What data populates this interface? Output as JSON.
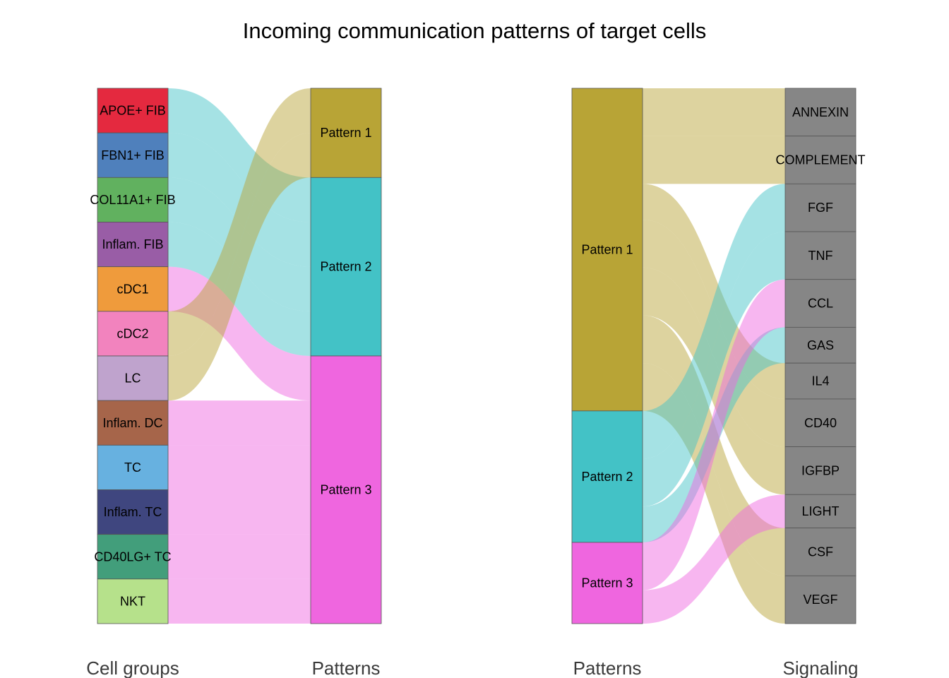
{
  "chart_data": {
    "type": "alluvial",
    "title": "Incoming communication patterns of target cells",
    "panels": [
      {
        "name": "cell-groups-to-patterns",
        "left_axis_label": "Cell groups",
        "right_axis_label": "Patterns",
        "left_nodes": [
          {
            "label": "APOE+ FIB",
            "color": "#E4293F",
            "value": 1
          },
          {
            "label": "FBN1+ FIB",
            "color": "#4F80BC",
            "value": 1
          },
          {
            "label": "COL11A1+ FIB",
            "color": "#61B15F",
            "value": 1
          },
          {
            "label": "Inflam. FIB",
            "color": "#995DA6",
            "value": 1
          },
          {
            "label": "cDC1",
            "color": "#EF9B3C",
            "value": 1
          },
          {
            "label": "cDC2",
            "color": "#F283BE",
            "value": 1
          },
          {
            "label": "LC",
            "color": "#BFA3CD",
            "value": 1
          },
          {
            "label": "Inflam. DC",
            "color": "#A6654A",
            "value": 1
          },
          {
            "label": "TC",
            "color": "#67B1E0",
            "value": 1
          },
          {
            "label": "Inflam. TC",
            "color": "#3F467F",
            "value": 1
          },
          {
            "label": "CD40LG+ TC",
            "color": "#429E7B",
            "value": 1
          },
          {
            "label": "NKT",
            "color": "#B6E18B",
            "value": 1
          }
        ],
        "right_nodes": [
          {
            "label": "Pattern 1",
            "color": "#B8A436"
          },
          {
            "label": "Pattern 2",
            "color": "#43C2C6"
          },
          {
            "label": "Pattern 3",
            "color": "#EF66DF"
          }
        ],
        "flows": [
          {
            "source": "APOE+ FIB",
            "target": "Pattern 2",
            "value": 1
          },
          {
            "source": "FBN1+ FIB",
            "target": "Pattern 2",
            "value": 1
          },
          {
            "source": "COL11A1+ FIB",
            "target": "Pattern 2",
            "value": 1
          },
          {
            "source": "Inflam. FIB",
            "target": "Pattern 2",
            "value": 1
          },
          {
            "source": "cDC1",
            "target": "Pattern 3",
            "value": 1
          },
          {
            "source": "cDC2",
            "target": "Pattern 1",
            "value": 1
          },
          {
            "source": "LC",
            "target": "Pattern 1",
            "value": 1
          },
          {
            "source": "Inflam. DC",
            "target": "Pattern 3",
            "value": 1
          },
          {
            "source": "TC",
            "target": "Pattern 3",
            "value": 1
          },
          {
            "source": "Inflam. TC",
            "target": "Pattern 3",
            "value": 1
          },
          {
            "source": "CD40LG+ TC",
            "target": "Pattern 3",
            "value": 1
          },
          {
            "source": "NKT",
            "target": "Pattern 3",
            "value": 1
          }
        ]
      },
      {
        "name": "patterns-to-signaling",
        "left_axis_label": "Patterns",
        "right_axis_label": "Signaling",
        "left_nodes": [
          {
            "label": "Pattern 1",
            "color": "#B8A436"
          },
          {
            "label": "Pattern 2",
            "color": "#43C2C6"
          },
          {
            "label": "Pattern 3",
            "color": "#EF66DF"
          }
        ],
        "right_nodes": [
          {
            "label": "ANNEXIN",
            "color": "#868686"
          },
          {
            "label": "COMPLEMENT",
            "color": "#868686"
          },
          {
            "label": "FGF",
            "color": "#868686"
          },
          {
            "label": "TNF",
            "color": "#868686"
          },
          {
            "label": "CCL",
            "color": "#868686"
          },
          {
            "label": "GAS",
            "color": "#868686"
          },
          {
            "label": "IL4",
            "color": "#868686"
          },
          {
            "label": "CD40",
            "color": "#868686"
          },
          {
            "label": "IGFBP",
            "color": "#868686"
          },
          {
            "label": "LIGHT",
            "color": "#868686"
          },
          {
            "label": "CSF",
            "color": "#868686"
          },
          {
            "label": "VEGF",
            "color": "#868686"
          }
        ],
        "flows": [
          {
            "source": "Pattern 1",
            "target": "ANNEXIN",
            "value": 1
          },
          {
            "source": "Pattern 1",
            "target": "COMPLEMENT",
            "value": 1
          },
          {
            "source": "Pattern 1",
            "target": "CD40",
            "value": 1
          },
          {
            "source": "Pattern 1",
            "target": "IGFBP",
            "value": 1
          },
          {
            "source": "Pattern 1",
            "target": "IL4",
            "value": 0.75
          },
          {
            "source": "Pattern 1",
            "target": "CSF",
            "value": 1
          },
          {
            "source": "Pattern 1",
            "target": "VEGF",
            "value": 1
          },
          {
            "source": "Pattern 2",
            "target": "FGF",
            "value": 1
          },
          {
            "source": "Pattern 2",
            "target": "TNF",
            "value": 1
          },
          {
            "source": "Pattern 2",
            "target": "GAS",
            "value": 0.75
          },
          {
            "source": "Pattern 3",
            "target": "CCL",
            "value": 1
          },
          {
            "source": "Pattern 3",
            "target": "LIGHT",
            "value": 0.7
          }
        ]
      }
    ]
  }
}
